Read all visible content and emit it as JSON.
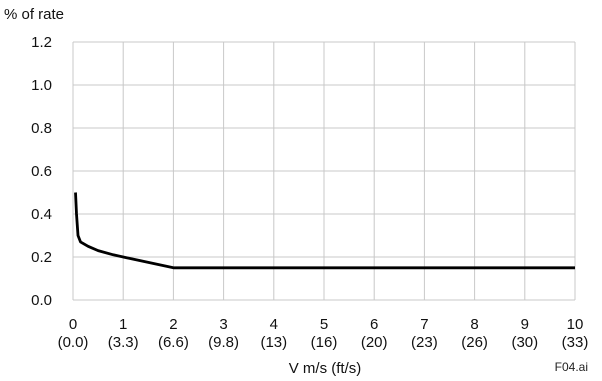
{
  "figure_id": "F04.ai",
  "chart_data": {
    "type": "line",
    "title": "",
    "ylabel": "% of rate",
    "xlabel": "V m/s (ft/s)",
    "xlim": [
      0,
      10
    ],
    "ylim": [
      0,
      1.2
    ],
    "grid": true,
    "x_ticks": [
      {
        "value": 0,
        "label": "0",
        "sublabel": "(0.0)"
      },
      {
        "value": 1,
        "label": "1",
        "sublabel": "(3.3)"
      },
      {
        "value": 2,
        "label": "2",
        "sublabel": "(6.6)"
      },
      {
        "value": 3,
        "label": "3",
        "sublabel": "(9.8)"
      },
      {
        "value": 4,
        "label": "4",
        "sublabel": "(13)"
      },
      {
        "value": 5,
        "label": "5",
        "sublabel": "(16)"
      },
      {
        "value": 6,
        "label": "6",
        "sublabel": "(20)"
      },
      {
        "value": 7,
        "label": "7",
        "sublabel": "(23)"
      },
      {
        "value": 8,
        "label": "8",
        "sublabel": "(26)"
      },
      {
        "value": 9,
        "label": "9",
        "sublabel": "(30)"
      },
      {
        "value": 10,
        "label": "10",
        "sublabel": "(33)"
      }
    ],
    "y_ticks": [
      {
        "value": 0.0,
        "label": "0.0"
      },
      {
        "value": 0.2,
        "label": "0.2"
      },
      {
        "value": 0.4,
        "label": "0.4"
      },
      {
        "value": 0.6,
        "label": "0.6"
      },
      {
        "value": 0.8,
        "label": "0.8"
      },
      {
        "value": 1.0,
        "label": "1.0"
      },
      {
        "value": 1.2,
        "label": "1.2"
      }
    ],
    "series": [
      {
        "color": "#000000",
        "x": [
          0.05,
          0.07,
          0.1,
          0.15,
          0.3,
          0.5,
          0.8,
          1.0,
          2.0,
          10.0
        ],
        "y": [
          0.5,
          0.4,
          0.3,
          0.27,
          0.25,
          0.23,
          0.21,
          0.2,
          0.15,
          0.15
        ]
      }
    ]
  }
}
